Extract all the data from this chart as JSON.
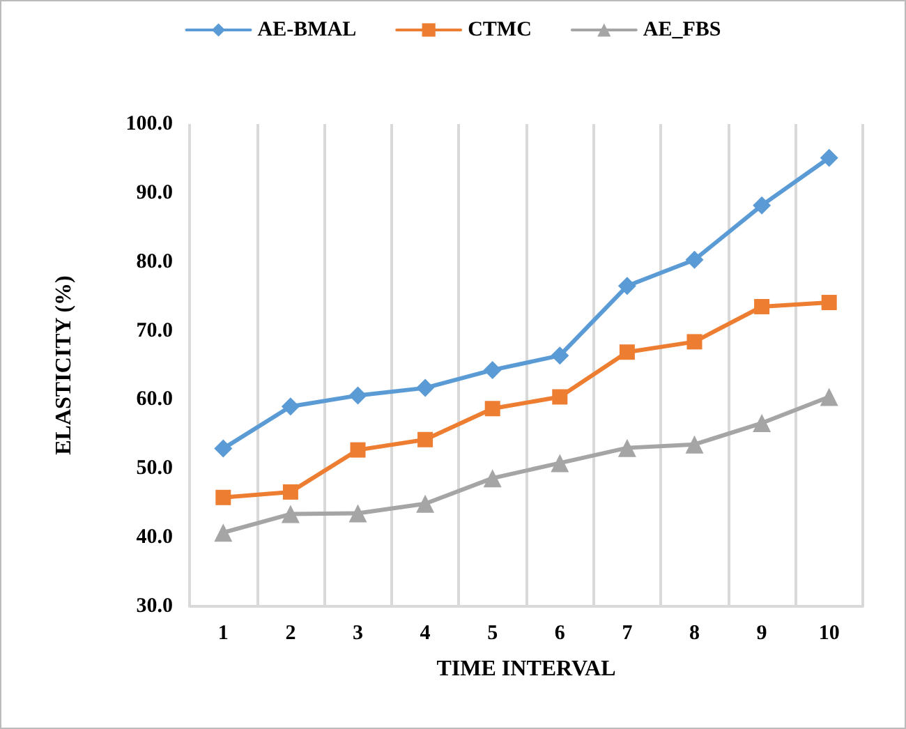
{
  "chart_data": {
    "type": "line",
    "xlabel": "TIME INTERVAL",
    "ylabel": "ELASTICITY (%)",
    "categories": [
      "1",
      "2",
      "3",
      "4",
      "5",
      "6",
      "7",
      "8",
      "9",
      "10"
    ],
    "series": [
      {
        "name": "AE-BMAL",
        "color": "#5b9bd5",
        "marker": "diamond",
        "values": [
          52.9,
          59.0,
          60.6,
          61.7,
          64.3,
          66.4,
          76.5,
          80.3,
          88.2,
          95.1
        ]
      },
      {
        "name": "CTMC",
        "color": "#ed7d31",
        "marker": "square",
        "values": [
          45.8,
          46.6,
          52.7,
          54.2,
          58.7,
          60.4,
          66.9,
          68.4,
          73.5,
          74.1
        ]
      },
      {
        "name": "AE_FBS",
        "color": "#a5a5a5",
        "marker": "triangle",
        "values": [
          40.7,
          43.4,
          43.5,
          44.9,
          48.6,
          50.8,
          53.0,
          53.5,
          56.6,
          60.4
        ]
      }
    ],
    "ylim": [
      30,
      100
    ],
    "yticks": [
      {
        "value": 30,
        "label": "30.0"
      },
      {
        "value": 40,
        "label": "40.0"
      },
      {
        "value": 50,
        "label": "50.0"
      },
      {
        "value": 60,
        "label": "60.0"
      },
      {
        "value": 70,
        "label": "70.0"
      },
      {
        "value": 80,
        "label": "80.0"
      },
      {
        "value": 90,
        "label": "90.0"
      },
      {
        "value": 100,
        "label": "100.0"
      }
    ],
    "grid": "x",
    "legend": "top",
    "line_style": "solid"
  }
}
